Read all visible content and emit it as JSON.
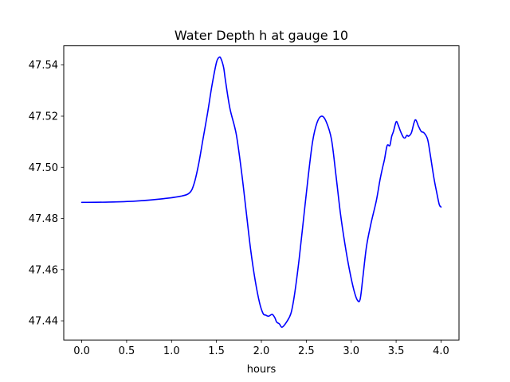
{
  "chart_data": {
    "type": "line",
    "title": "Water Depth h at gauge 10",
    "xlabel": "hours",
    "ylabel": "",
    "xlim": [
      -0.2,
      4.2
    ],
    "ylim": [
      47.4325,
      47.5475
    ],
    "xticks": [
      0.0,
      0.5,
      1.0,
      1.5,
      2.0,
      2.5,
      3.0,
      3.5,
      4.0
    ],
    "xtick_labels": [
      "0.0",
      "0.5",
      "1.0",
      "1.5",
      "2.0",
      "2.5",
      "3.0",
      "3.5",
      "4.0"
    ],
    "yticks": [
      47.44,
      47.46,
      47.48,
      47.5,
      47.52,
      47.54
    ],
    "ytick_labels": [
      "47.44",
      "47.46",
      "47.48",
      "47.50",
      "47.52",
      "47.54"
    ],
    "grid": false,
    "series": [
      {
        "color": "#0000ff",
        "x": [
          0.0,
          0.3,
          0.6,
          0.9,
          1.1,
          1.2,
          1.25,
          1.3,
          1.35,
          1.4,
          1.45,
          1.5,
          1.53,
          1.55,
          1.58,
          1.6,
          1.65,
          1.72,
          1.78,
          1.83,
          1.88,
          1.93,
          1.98,
          2.02,
          2.05,
          2.08,
          2.12,
          2.15,
          2.17,
          2.2,
          2.23,
          2.28,
          2.33,
          2.37,
          2.42,
          2.47,
          2.52,
          2.57,
          2.62,
          2.67,
          2.72,
          2.78,
          2.83,
          2.88,
          2.93,
          2.98,
          3.03,
          3.07,
          3.1,
          3.13,
          3.17,
          3.22,
          3.28,
          3.32,
          3.35,
          3.37,
          3.4,
          3.43,
          3.45,
          3.47,
          3.5,
          3.52,
          3.55,
          3.58,
          3.6,
          3.62,
          3.64,
          3.67,
          3.7,
          3.72,
          3.75,
          3.78,
          3.81,
          3.85,
          3.88,
          3.92,
          3.95,
          3.98,
          4.0
        ],
        "y": [
          47.4863,
          47.4864,
          47.4868,
          47.4877,
          47.4887,
          47.49,
          47.4935,
          47.501,
          47.511,
          47.521,
          47.532,
          47.541,
          47.543,
          47.5425,
          47.539,
          47.534,
          47.523,
          47.513,
          47.498,
          47.483,
          47.468,
          47.456,
          47.447,
          47.4428,
          47.4422,
          47.4418,
          47.4425,
          47.4412,
          47.4395,
          47.4388,
          47.4375,
          47.4395,
          47.443,
          47.4505,
          47.464,
          47.48,
          47.496,
          47.51,
          47.5175,
          47.52,
          47.518,
          47.511,
          47.497,
          47.482,
          47.47,
          47.46,
          47.452,
          47.448,
          47.4485,
          47.457,
          47.469,
          47.478,
          47.487,
          47.495,
          47.5,
          47.503,
          47.5085,
          47.5085,
          47.512,
          47.514,
          47.5178,
          47.5168,
          47.514,
          47.5118,
          47.5115,
          47.5125,
          47.5122,
          47.5135,
          47.5175,
          47.5185,
          47.516,
          47.514,
          47.5135,
          47.511,
          47.505,
          47.496,
          47.4905,
          47.4855,
          47.4845
        ]
      }
    ]
  }
}
